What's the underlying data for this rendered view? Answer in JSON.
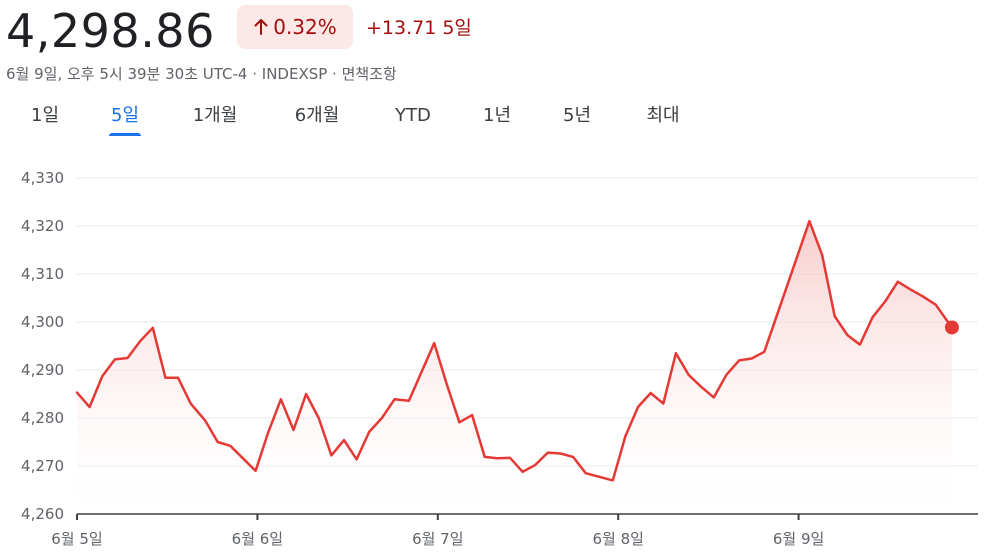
{
  "header": {
    "price": "4,298.86",
    "change_pct": "0.32%",
    "change_abs": "+13.71",
    "change_period": "5일",
    "meta": "6월 9일, 오후 5시 39분 30초 UTC-4 · INDEXSP · 면책조항"
  },
  "tabs": [
    {
      "label": "1일",
      "active": false
    },
    {
      "label": "5일",
      "active": true
    },
    {
      "label": "1개월",
      "active": false
    },
    {
      "label": "6개월",
      "active": false
    },
    {
      "label": "YTD",
      "active": false
    },
    {
      "label": "1년",
      "active": false
    },
    {
      "label": "5년",
      "active": false
    },
    {
      "label": "최대",
      "active": false
    }
  ],
  "colors": {
    "line": "#e53935",
    "area_top": "#f5bcbc",
    "grid": "#e8eaed",
    "change": "#a50e0e",
    "pill_bg": "#fce8e6",
    "active_tab": "#1a73e8"
  },
  "icons": {
    "change_arrow": "arrow-up-icon"
  },
  "chart_data": {
    "type": "area",
    "title": "",
    "xlabel": "",
    "ylabel": "",
    "ylim": [
      4260,
      4330
    ],
    "yticks": [
      4260,
      4270,
      4280,
      4290,
      4300,
      4310,
      4320,
      4330
    ],
    "ytick_labels": [
      "4,260",
      "4,270",
      "4,280",
      "4,290",
      "4,300",
      "4,310",
      "4,320",
      "4,330"
    ],
    "xlim": [
      0,
      5
    ],
    "xticks": [
      0,
      1,
      2,
      3,
      4
    ],
    "xtick_labels": [
      "6월 5일",
      "6월 6일",
      "6월 7일",
      "6월 8일",
      "6월 9일"
    ],
    "grid": true,
    "last_point_marker": true,
    "series": [
      {
        "values": [
          [
            0.0,
            4285.3
          ],
          [
            0.07,
            4282.3
          ],
          [
            0.14,
            4288.7
          ],
          [
            0.21,
            4292.2
          ],
          [
            0.28,
            4292.5
          ],
          [
            0.35,
            4296.0
          ],
          [
            0.42,
            4298.8
          ],
          [
            0.49,
            4288.4
          ],
          [
            0.56,
            4288.4
          ],
          [
            0.63,
            4283.0
          ],
          [
            0.71,
            4279.5
          ],
          [
            0.78,
            4275.0
          ],
          [
            0.85,
            4274.2
          ],
          [
            0.99,
            4269.0
          ],
          [
            1.06,
            4277.0
          ],
          [
            1.13,
            4283.9
          ],
          [
            1.2,
            4277.5
          ],
          [
            1.27,
            4285.0
          ],
          [
            1.34,
            4280.0
          ],
          [
            1.41,
            4272.2
          ],
          [
            1.48,
            4275.4
          ],
          [
            1.55,
            4271.4
          ],
          [
            1.62,
            4277.1
          ],
          [
            1.69,
            4280.0
          ],
          [
            1.76,
            4283.9
          ],
          [
            1.84,
            4283.6
          ],
          [
            1.98,
            4295.6
          ],
          [
            2.05,
            4287.0
          ],
          [
            2.12,
            4279.1
          ],
          [
            2.19,
            4280.6
          ],
          [
            2.26,
            4271.9
          ],
          [
            2.33,
            4271.6
          ],
          [
            2.4,
            4271.7
          ],
          [
            2.47,
            4268.8
          ],
          [
            2.54,
            4270.2
          ],
          [
            2.61,
            4272.8
          ],
          [
            2.68,
            4272.6
          ],
          [
            2.75,
            4271.9
          ],
          [
            2.82,
            4268.5
          ],
          [
            2.97,
            4267.0
          ],
          [
            3.04,
            4276.2
          ],
          [
            3.11,
            4282.3
          ],
          [
            3.18,
            4285.2
          ],
          [
            3.25,
            4283.0
          ],
          [
            3.32,
            4293.5
          ],
          [
            3.39,
            4289.0
          ],
          [
            3.46,
            4286.5
          ],
          [
            3.53,
            4284.3
          ],
          [
            3.6,
            4289.0
          ],
          [
            3.67,
            4292.0
          ],
          [
            3.74,
            4292.4
          ],
          [
            3.81,
            4293.8
          ],
          [
            4.06,
            4321.0
          ],
          [
            4.13,
            4314.0
          ],
          [
            4.2,
            4301.2
          ],
          [
            4.27,
            4297.3
          ],
          [
            4.34,
            4295.3
          ],
          [
            4.41,
            4301.0
          ],
          [
            4.48,
            4304.3
          ],
          [
            4.55,
            4308.4
          ],
          [
            4.62,
            4306.8
          ],
          [
            4.69,
            4305.3
          ],
          [
            4.76,
            4303.6
          ],
          [
            4.85,
            4298.86
          ]
        ]
      }
    ]
  }
}
